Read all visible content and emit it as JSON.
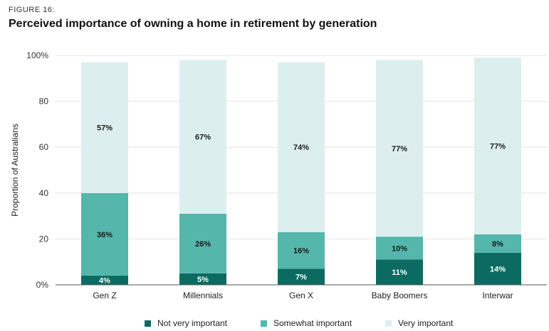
{
  "figure_label": "FIGURE 16:",
  "chart_data": {
    "type": "bar",
    "stacked": true,
    "title": "Perceived importance of owning a home in retirement by generation",
    "ylabel": "Proportion of Australians",
    "xlabel": "",
    "ylim": [
      0,
      100
    ],
    "yticks": [
      "0%",
      "20",
      "40",
      "60",
      "80",
      "100%"
    ],
    "ytick_values": [
      0,
      20,
      40,
      60,
      80,
      100
    ],
    "grid": true,
    "legend_position": "bottom",
    "categories": [
      "Gen Z",
      "Millennials",
      "Gen X",
      "Baby Boomers",
      "Interwar"
    ],
    "series": [
      {
        "name": "Not very important",
        "color": "#0b6b63",
        "label_color": "#ffffff",
        "values": [
          4,
          5,
          7,
          11,
          14
        ],
        "labels": [
          "4%",
          "5%",
          "7%",
          "11%",
          "14%"
        ]
      },
      {
        "name": "Somewhat important",
        "color": "#55b6ac",
        "label_color": "#1a1a1a",
        "values": [
          36,
          26,
          16,
          10,
          8
        ],
        "labels": [
          "36%",
          "26%",
          "16%",
          "10%",
          "8%"
        ]
      },
      {
        "name": "Very important",
        "color": "#dcefee",
        "label_color": "#1a1a1a",
        "values": [
          57,
          67,
          74,
          77,
          77
        ],
        "labels": [
          "57%",
          "67%",
          "74%",
          "77%",
          "77%"
        ]
      }
    ]
  }
}
